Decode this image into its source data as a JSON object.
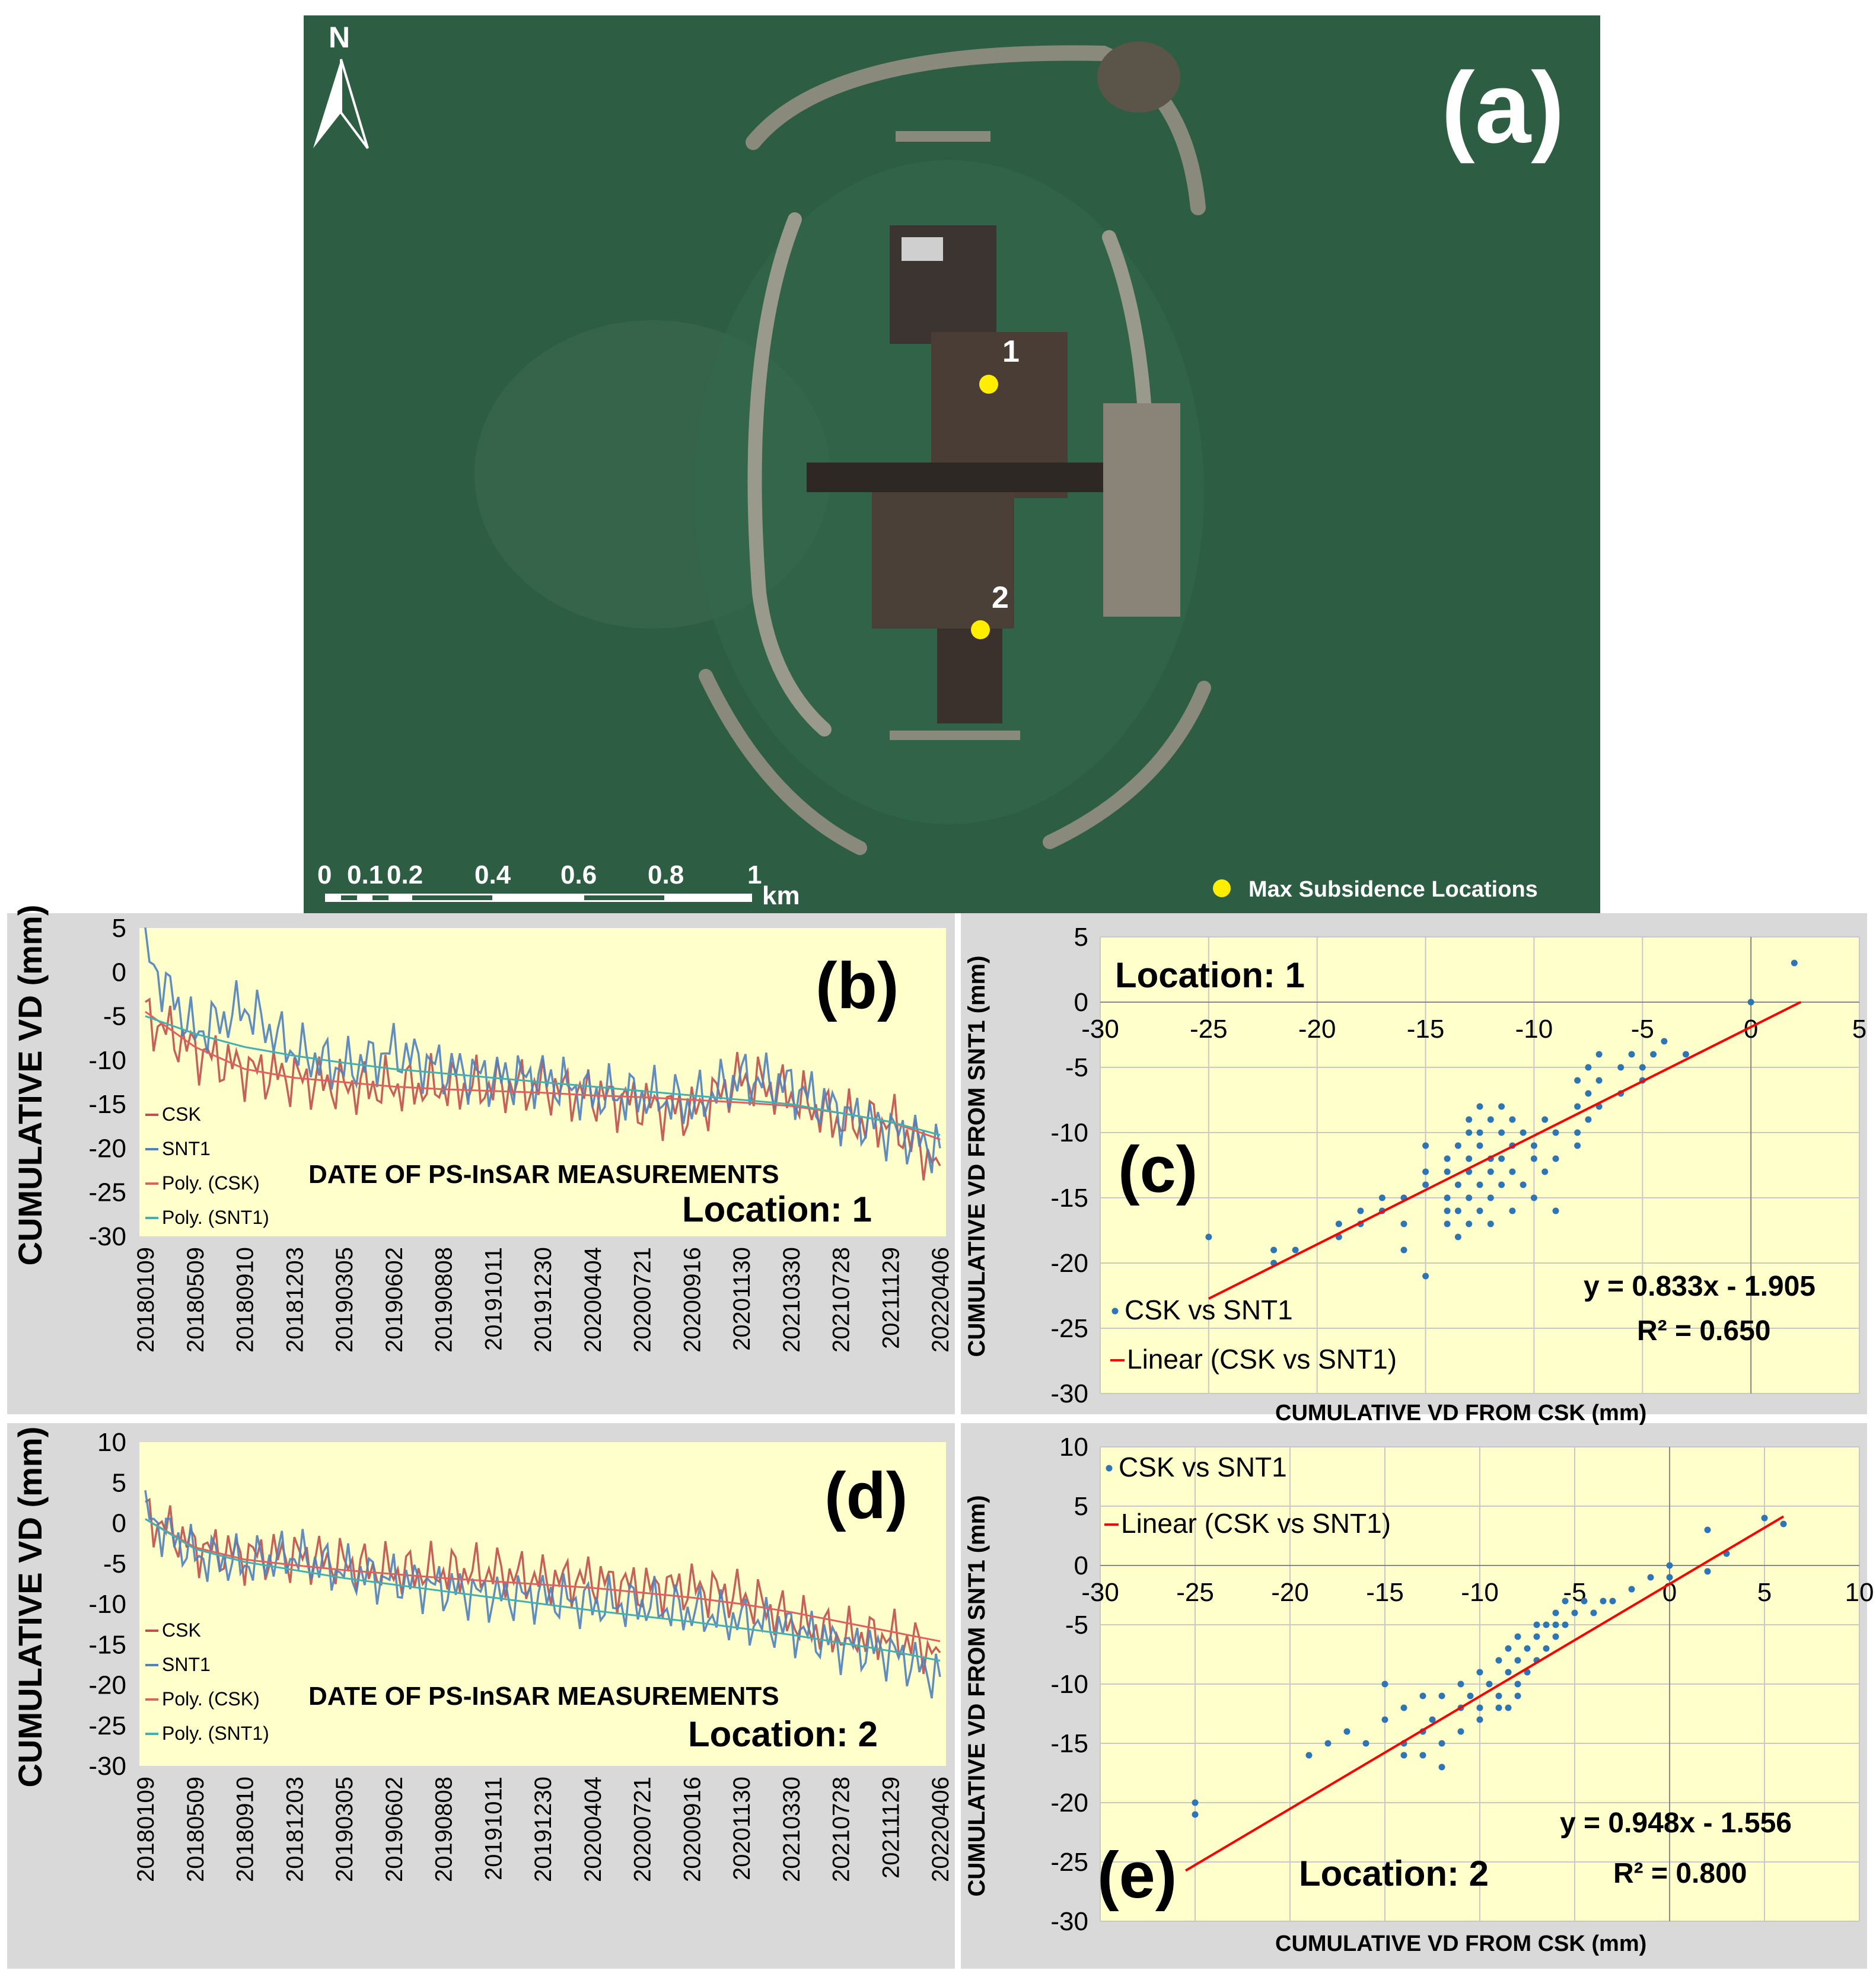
{
  "map": {
    "panel_label": "(a)",
    "north_label": "N",
    "scale_ticks": [
      "0",
      "0.1",
      "0.2",
      "0.4",
      "0.6",
      "0.8",
      "1"
    ],
    "scale_unit": "km",
    "legend_label": "Max Subsidence Locations",
    "point_labels": [
      "1",
      "2"
    ],
    "colors": {
      "water": "#2c5f42",
      "marker": "#ffee00",
      "land": "#3a3530"
    }
  },
  "chart_data": [
    {
      "id": "b",
      "type": "line",
      "panel_label": "(b)",
      "location_label": "Location:  1",
      "ylabel": "CUMULATIVE VD (mm)",
      "xlabel": "DATE OF PS-InSAR MEASUREMENTS",
      "ylim": [
        -30,
        5
      ],
      "yticks": [
        "5",
        "0",
        "-5",
        "-10",
        "-15",
        "-20",
        "-25",
        "-30"
      ],
      "categories": [
        "20180109",
        "20180509",
        "20180910",
        "20181203",
        "20190305",
        "20190602",
        "20190808",
        "20191011",
        "20191230",
        "20200404",
        "20200721",
        "20200916",
        "20201130",
        "20210330",
        "20210728",
        "20211129",
        "20220406"
      ],
      "legend": [
        "CSK",
        "SNT1",
        "Poly. (CSK)",
        "Poly. (SNT1)"
      ],
      "series": [
        {
          "name": "CSK",
          "color": "#c0504d",
          "values": [
            -5,
            -9,
            -11,
            -12,
            -13,
            -13,
            -13,
            -13,
            -13,
            -14,
            -15,
            -16,
            -12,
            -14,
            -17,
            -17,
            -22
          ]
        },
        {
          "name": "SNT1",
          "color": "#4f81bd",
          "values": [
            2,
            -7,
            -4,
            -9,
            -11,
            -9,
            -11,
            -12,
            -12,
            -14,
            -14,
            -15,
            -12,
            -13,
            -16,
            -18,
            -20
          ]
        },
        {
          "name": "Poly. (CSK)",
          "color": "#e06060",
          "values": [
            -4.5,
            -8.5,
            -11,
            -12,
            -12.5,
            -13,
            -13.3,
            -13.5,
            -13.7,
            -14,
            -14.2,
            -14.5,
            -14.8,
            -15.2,
            -16,
            -17,
            -19
          ]
        },
        {
          "name": "Poly. (SNT1)",
          "color": "#40b0b0",
          "values": [
            -5,
            -7,
            -8.5,
            -9.5,
            -10.3,
            -11,
            -11.5,
            -12,
            -12.5,
            -13,
            -13.5,
            -14,
            -14.5,
            -15,
            -16,
            -17,
            -18.5
          ]
        }
      ]
    },
    {
      "id": "d",
      "type": "line",
      "panel_label": "(d)",
      "location_label": "Location:  2",
      "ylabel": "CUMULATIVE VD (mm)",
      "xlabel": "DATE OF PS-InSAR MEASUREMENTS",
      "ylim": [
        -30,
        10
      ],
      "yticks": [
        "10",
        "5",
        "0",
        "-5",
        "-10",
        "-15",
        "-20",
        "-25",
        "-30"
      ],
      "categories": [
        "20180109",
        "20180509",
        "20180910",
        "20181203",
        "20190305",
        "20190602",
        "20190808",
        "20191011",
        "20191230",
        "20200404",
        "20200721",
        "20200916",
        "20201130",
        "20210330",
        "20210728",
        "20211129",
        "20220406"
      ],
      "legend": [
        "CSK",
        "SNT1",
        "Poly. (CSK)",
        "Poly. (SNT1)"
      ],
      "series": [
        {
          "name": "CSK",
          "color": "#c0504d",
          "values": [
            1,
            -3,
            -4,
            -4,
            -5,
            -6,
            -6,
            -6,
            -7,
            -7,
            -8,
            -8,
            -9,
            -12,
            -14,
            -14,
            -16
          ]
        },
        {
          "name": "SNT1",
          "color": "#4f81bd",
          "values": [
            1,
            -4,
            -5,
            -4,
            -6,
            -7,
            -8,
            -9,
            -9,
            -10,
            -10,
            -11,
            -12,
            -13,
            -15,
            -16,
            -19
          ]
        },
        {
          "name": "Poly. (CSK)",
          "color": "#e06060",
          "values": [
            0.5,
            -3,
            -4.5,
            -5.2,
            -5.8,
            -6.3,
            -6.8,
            -7.2,
            -7.6,
            -8,
            -8.6,
            -9.2,
            -10,
            -11,
            -12.2,
            -13.4,
            -14.6
          ]
        },
        {
          "name": "Poly. (SNT1)",
          "color": "#40b0b0",
          "values": [
            0.5,
            -3.2,
            -4.8,
            -5.8,
            -6.8,
            -7.6,
            -8.4,
            -9.2,
            -10,
            -10.8,
            -11.5,
            -12.2,
            -13,
            -13.8,
            -14.8,
            -15.8,
            -17
          ]
        }
      ]
    },
    {
      "id": "c",
      "type": "scatter",
      "panel_label": "(c)",
      "location_label": "Location:  1",
      "xlabel": "CUMULATIVE VD FROM CSK (mm)",
      "ylabel": "CUMULATIVE VD FROM SNT1 (mm)",
      "xlim": [
        -30,
        5
      ],
      "ylim": [
        -30,
        5
      ],
      "xticks": [
        "-30",
        "-25",
        "-20",
        "-15",
        "-10",
        "-5",
        "0",
        "5"
      ],
      "yticks": [
        "5",
        "0",
        "-5",
        "-10",
        "-15",
        "-20",
        "-25",
        "-30"
      ],
      "legend": [
        "CSK vs SNT1",
        "Linear (CSK vs SNT1)"
      ],
      "equation": "y = 0.833x - 1.905",
      "r2": "R² = 0.650",
      "fit": {
        "slope": 0.833,
        "intercept": -1.905,
        "x_range": [
          -25,
          2.3
        ]
      },
      "points": [
        [
          -25,
          -18
        ],
        [
          -22,
          -19
        ],
        [
          -22,
          -20
        ],
        [
          -21,
          -19
        ],
        [
          -19,
          -18
        ],
        [
          -19,
          -17
        ],
        [
          -18,
          -16
        ],
        [
          -18,
          -17
        ],
        [
          -17,
          -15
        ],
        [
          -17,
          -16
        ],
        [
          -16,
          -17
        ],
        [
          -16,
          -19
        ],
        [
          -16,
          -15
        ],
        [
          -15,
          -13
        ],
        [
          -15,
          -14
        ],
        [
          -15,
          -21
        ],
        [
          -15,
          -11
        ],
        [
          -14,
          -12
        ],
        [
          -14,
          -15
        ],
        [
          -14,
          -16
        ],
        [
          -14,
          -17
        ],
        [
          -14,
          -13
        ],
        [
          -13.5,
          -11
        ],
        [
          -13.5,
          -14
        ],
        [
          -13.5,
          -16
        ],
        [
          -13.5,
          -18
        ],
        [
          -13,
          -9
        ],
        [
          -13,
          -10
        ],
        [
          -13,
          -12
        ],
        [
          -13,
          -13
        ],
        [
          -13,
          -15
        ],
        [
          -13,
          -17
        ],
        [
          -12.5,
          -8
        ],
        [
          -12.5,
          -10
        ],
        [
          -12.5,
          -11
        ],
        [
          -12.5,
          -14
        ],
        [
          -12.5,
          -16
        ],
        [
          -12,
          -9
        ],
        [
          -12,
          -12
        ],
        [
          -12,
          -13
        ],
        [
          -12,
          -15
        ],
        [
          -12,
          -17
        ],
        [
          -11.5,
          -8
        ],
        [
          -11.5,
          -10
        ],
        [
          -11.5,
          -12
        ],
        [
          -11.5,
          -14
        ],
        [
          -11,
          -9
        ],
        [
          -11,
          -11
        ],
        [
          -11,
          -13
        ],
        [
          -11,
          -16
        ],
        [
          -10.5,
          -10
        ],
        [
          -10.5,
          -14
        ],
        [
          -10,
          -11
        ],
        [
          -10,
          -12
        ],
        [
          -10,
          -15
        ],
        [
          -9.5,
          -9
        ],
        [
          -9.5,
          -13
        ],
        [
          -9,
          -10
        ],
        [
          -9,
          -12
        ],
        [
          -9,
          -16
        ],
        [
          -8,
          -6
        ],
        [
          -8,
          -8
        ],
        [
          -8,
          -10
        ],
        [
          -8,
          -11
        ],
        [
          -7.5,
          -5
        ],
        [
          -7.5,
          -7
        ],
        [
          -7.5,
          -9
        ],
        [
          -7,
          -4
        ],
        [
          -7,
          -6
        ],
        [
          -7,
          -8
        ],
        [
          -6,
          -5
        ],
        [
          -6,
          -7
        ],
        [
          -5.5,
          -4
        ],
        [
          -5,
          -5
        ],
        [
          -5,
          -6
        ],
        [
          -4.5,
          -4
        ],
        [
          -4,
          -3
        ],
        [
          -3,
          -4
        ],
        [
          0,
          0
        ],
        [
          2,
          3
        ]
      ]
    },
    {
      "id": "e",
      "type": "scatter",
      "panel_label": "(e)",
      "location_label": "Location:  2",
      "xlabel": "CUMULATIVE VD FROM CSK (mm)",
      "ylabel": "CUMULATIVE VD FROM SNT1 (mm)",
      "xlim": [
        -30,
        10
      ],
      "ylim": [
        -30,
        10
      ],
      "xticks": [
        "-30",
        "-25",
        "-20",
        "-15",
        "-10",
        "-5",
        "0",
        "5",
        "10"
      ],
      "yticks": [
        "10",
        "5",
        "0",
        "-5",
        "-10",
        "-15",
        "-20",
        "-25",
        "-30"
      ],
      "legend": [
        "CSK vs SNT1",
        "Linear (CSK vs SNT1)"
      ],
      "equation": "y = 0.948x - 1.556",
      "r2": "R² = 0.800",
      "fit": {
        "slope": 0.948,
        "intercept": -1.556,
        "x_range": [
          -25.5,
          6
        ]
      },
      "points": [
        [
          -25,
          -20
        ],
        [
          -25,
          -21
        ],
        [
          -19,
          -16
        ],
        [
          -18,
          -15
        ],
        [
          -17,
          -14
        ],
        [
          -16,
          -15
        ],
        [
          -15,
          -10
        ],
        [
          -15,
          -13
        ],
        [
          -14,
          -12
        ],
        [
          -14,
          -15
        ],
        [
          -14,
          -16
        ],
        [
          -13,
          -11
        ],
        [
          -13,
          -14
        ],
        [
          -13,
          -16
        ],
        [
          -12.5,
          -13
        ],
        [
          -12,
          -11
        ],
        [
          -12,
          -15
        ],
        [
          -12,
          -17
        ],
        [
          -11,
          -10
        ],
        [
          -11,
          -12
        ],
        [
          -11,
          -14
        ],
        [
          -10.5,
          -11
        ],
        [
          -10,
          -9
        ],
        [
          -10,
          -12
        ],
        [
          -10,
          -13
        ],
        [
          -9.5,
          -10
        ],
        [
          -9,
          -8
        ],
        [
          -9,
          -11
        ],
        [
          -9,
          -12
        ],
        [
          -8.5,
          -7
        ],
        [
          -8.5,
          -9
        ],
        [
          -8.5,
          -12
        ],
        [
          -8,
          -6
        ],
        [
          -8,
          -8
        ],
        [
          -8,
          -10
        ],
        [
          -8,
          -11
        ],
        [
          -7.5,
          -7
        ],
        [
          -7.5,
          -9
        ],
        [
          -7,
          -5
        ],
        [
          -7,
          -6
        ],
        [
          -7,
          -8
        ],
        [
          -6.5,
          -5
        ],
        [
          -6.5,
          -7
        ],
        [
          -6,
          -4
        ],
        [
          -6,
          -5
        ],
        [
          -6,
          -6
        ],
        [
          -5.5,
          -3
        ],
        [
          -5.5,
          -5
        ],
        [
          -5,
          -4
        ],
        [
          -4.5,
          -3
        ],
        [
          -4,
          -4
        ],
        [
          -3.5,
          -3
        ],
        [
          -3,
          -3
        ],
        [
          -2,
          -2
        ],
        [
          -1,
          -1
        ],
        [
          0,
          0
        ],
        [
          0,
          -1
        ],
        [
          2,
          -0.5
        ],
        [
          2,
          3
        ],
        [
          3,
          1
        ],
        [
          5,
          4
        ],
        [
          6,
          3.5
        ]
      ]
    }
  ]
}
